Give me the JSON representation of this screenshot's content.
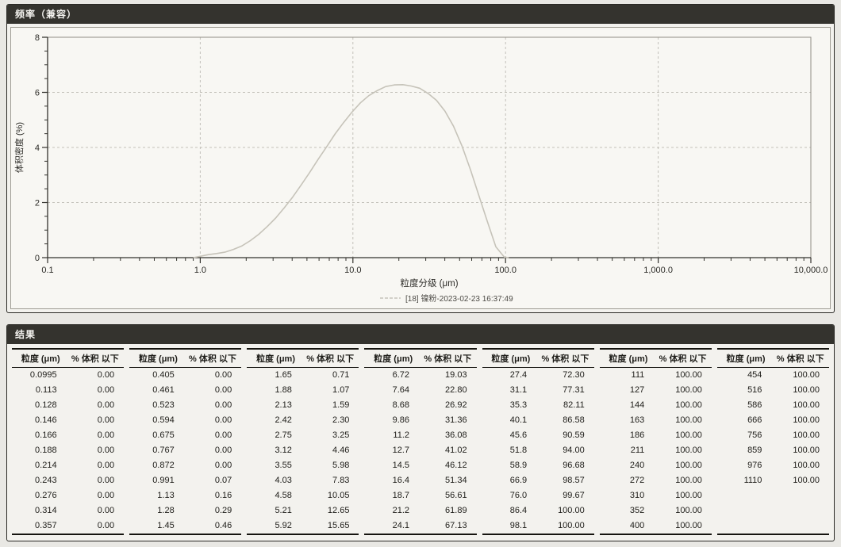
{
  "panels": {
    "frequency": {
      "title": "频率（兼容）"
    },
    "results": {
      "title": "结果"
    }
  },
  "chart_data": {
    "type": "line",
    "title": "",
    "xlabel": "粒度分级 (μm)",
    "ylabel": "体积密度 (%)",
    "x_scale": "log",
    "xlim": [
      0.1,
      10000
    ],
    "ylim": [
      0,
      8
    ],
    "y_ticks": [
      0,
      2,
      4,
      6,
      8
    ],
    "x_tick_labels": [
      "0.1",
      "1.0",
      "10.0",
      "100.0",
      "1,000.0",
      "10,000.0"
    ],
    "grid": "dashed",
    "legend_position": "bottom-center",
    "legend": "[18] 镍粉-2023-02-23 16:37:49",
    "curve_color": "#c6c3b9",
    "series": [
      {
        "name": "[18] 镍粉-2023-02-23 16:37:49",
        "x": [
          0.9,
          1.0,
          1.13,
          1.28,
          1.45,
          1.65,
          1.88,
          2.13,
          2.42,
          2.75,
          3.12,
          3.55,
          4.03,
          4.58,
          5.21,
          5.92,
          6.72,
          7.64,
          8.68,
          9.86,
          11.2,
          12.7,
          14.5,
          16.4,
          18.7,
          21.2,
          24.1,
          27.4,
          31.1,
          35.3,
          40.1,
          45.6,
          51.8,
          58.9,
          66.9,
          76.0,
          86.4,
          98.1,
          105
        ],
        "y": [
          0,
          0.05,
          0.11,
          0.15,
          0.2,
          0.3,
          0.43,
          0.62,
          0.85,
          1.13,
          1.44,
          1.81,
          2.2,
          2.64,
          3.09,
          3.57,
          4.02,
          4.49,
          4.9,
          5.28,
          5.62,
          5.88,
          6.07,
          6.21,
          6.27,
          6.28,
          6.23,
          6.15,
          5.96,
          5.71,
          5.32,
          4.77,
          4.06,
          3.19,
          2.25,
          1.31,
          0.39,
          0.02,
          0
        ]
      }
    ]
  },
  "results_table": {
    "header_size": "粒度 (μm)",
    "header_pct": "% 体积 以下",
    "rows_per_column": 11,
    "columns": [
      [
        [
          "0.0995",
          "0.00"
        ],
        [
          "0.113",
          "0.00"
        ],
        [
          "0.128",
          "0.00"
        ],
        [
          "0.146",
          "0.00"
        ],
        [
          "0.166",
          "0.00"
        ],
        [
          "0.188",
          "0.00"
        ],
        [
          "0.214",
          "0.00"
        ],
        [
          "0.243",
          "0.00"
        ],
        [
          "0.276",
          "0.00"
        ],
        [
          "0.314",
          "0.00"
        ],
        [
          "0.357",
          "0.00"
        ]
      ],
      [
        [
          "0.405",
          "0.00"
        ],
        [
          "0.461",
          "0.00"
        ],
        [
          "0.523",
          "0.00"
        ],
        [
          "0.594",
          "0.00"
        ],
        [
          "0.675",
          "0.00"
        ],
        [
          "0.767",
          "0.00"
        ],
        [
          "0.872",
          "0.00"
        ],
        [
          "0.991",
          "0.07"
        ],
        [
          "1.13",
          "0.16"
        ],
        [
          "1.28",
          "0.29"
        ],
        [
          "1.45",
          "0.46"
        ]
      ],
      [
        [
          "1.65",
          "0.71"
        ],
        [
          "1.88",
          "1.07"
        ],
        [
          "2.13",
          "1.59"
        ],
        [
          "2.42",
          "2.30"
        ],
        [
          "2.75",
          "3.25"
        ],
        [
          "3.12",
          "4.46"
        ],
        [
          "3.55",
          "5.98"
        ],
        [
          "4.03",
          "7.83"
        ],
        [
          "4.58",
          "10.05"
        ],
        [
          "5.21",
          "12.65"
        ],
        [
          "5.92",
          "15.65"
        ]
      ],
      [
        [
          "6.72",
          "19.03"
        ],
        [
          "7.64",
          "22.80"
        ],
        [
          "8.68",
          "26.92"
        ],
        [
          "9.86",
          "31.36"
        ],
        [
          "11.2",
          "36.08"
        ],
        [
          "12.7",
          "41.02"
        ],
        [
          "14.5",
          "46.12"
        ],
        [
          "16.4",
          "51.34"
        ],
        [
          "18.7",
          "56.61"
        ],
        [
          "21.2",
          "61.89"
        ],
        [
          "24.1",
          "67.13"
        ]
      ],
      [
        [
          "27.4",
          "72.30"
        ],
        [
          "31.1",
          "77.31"
        ],
        [
          "35.3",
          "82.11"
        ],
        [
          "40.1",
          "86.58"
        ],
        [
          "45.6",
          "90.59"
        ],
        [
          "51.8",
          "94.00"
        ],
        [
          "58.9",
          "96.68"
        ],
        [
          "66.9",
          "98.57"
        ],
        [
          "76.0",
          "99.67"
        ],
        [
          "86.4",
          "100.00"
        ],
        [
          "98.1",
          "100.00"
        ]
      ],
      [
        [
          "111",
          "100.00"
        ],
        [
          "127",
          "100.00"
        ],
        [
          "144",
          "100.00"
        ],
        [
          "163",
          "100.00"
        ],
        [
          "186",
          "100.00"
        ],
        [
          "211",
          "100.00"
        ],
        [
          "240",
          "100.00"
        ],
        [
          "272",
          "100.00"
        ],
        [
          "310",
          "100.00"
        ],
        [
          "352",
          "100.00"
        ],
        [
          "400",
          "100.00"
        ]
      ],
      [
        [
          "454",
          "100.00"
        ],
        [
          "516",
          "100.00"
        ],
        [
          "586",
          "100.00"
        ],
        [
          "666",
          "100.00"
        ],
        [
          "756",
          "100.00"
        ],
        [
          "859",
          "100.00"
        ],
        [
          "976",
          "100.00"
        ],
        [
          "1110",
          "100.00"
        ]
      ]
    ]
  }
}
